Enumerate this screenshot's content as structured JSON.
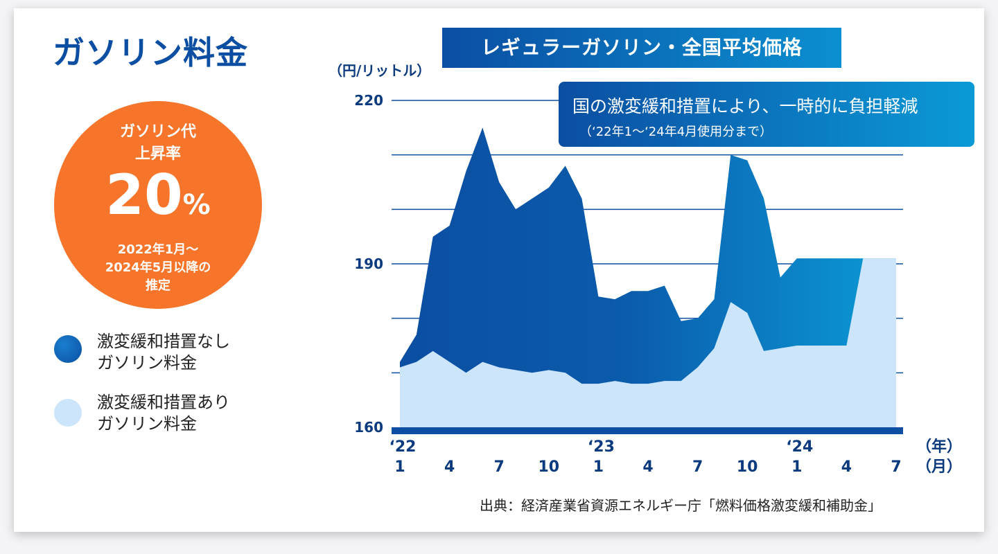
{
  "page_title": "ガソリン料金",
  "badge": {
    "line1": "ガソリン代",
    "line2": "上昇率",
    "value": "20",
    "unit": "%",
    "period1": "2022年1月〜",
    "period2": "2024年5月以降の",
    "period3": "推定"
  },
  "legend": [
    {
      "line1": "激変緩和措置なし",
      "line2": "ガソリン料金",
      "color": "#0b4ea2"
    },
    {
      "line1": "激変緩和措置あり",
      "line2": "ガソリン料金",
      "color": "#cce5fb"
    }
  ],
  "callout": {
    "line1": "国の激変緩和措置により、一時的に負担軽減",
    "line2": "（‘22年1〜‘24年4月使用分まで）"
  },
  "source": "出典：経済産業省資源エネルギー庁「燃料価格激変緩和補助金」",
  "chart_data": {
    "type": "area",
    "title": "レギュラーガソリン・全国平均価格",
    "ylabel": "（円/リットル）",
    "xlabel_year": "（年）",
    "xlabel_month": "（月）",
    "ylim": [
      160,
      220
    ],
    "y_ticks": [
      160,
      190,
      220
    ],
    "y_gridlines": [
      170,
      180,
      190,
      200,
      210,
      220
    ],
    "x_month_index": [
      0,
      1,
      2,
      3,
      4,
      5,
      6,
      7,
      8,
      9,
      10,
      11,
      12,
      13,
      14,
      15,
      16,
      17,
      18,
      19,
      20,
      21,
      22,
      23,
      24,
      25,
      26,
      27,
      28,
      29,
      30
    ],
    "x_tick_labels": [
      {
        "index": 0,
        "month": "1",
        "year": "‘22"
      },
      {
        "index": 3,
        "month": "4"
      },
      {
        "index": 6,
        "month": "7"
      },
      {
        "index": 9,
        "month": "10"
      },
      {
        "index": 12,
        "month": "1",
        "year": "‘23"
      },
      {
        "index": 15,
        "month": "4"
      },
      {
        "index": 18,
        "month": "7"
      },
      {
        "index": 21,
        "month": "10"
      },
      {
        "index": 24,
        "month": "1",
        "year": "‘24"
      },
      {
        "index": 27,
        "month": "4"
      },
      {
        "index": 30,
        "month": "7"
      }
    ],
    "series": [
      {
        "name": "激変緩和措置なし ガソリン料金",
        "color": "#0b4ea2",
        "values": [
          172,
          177,
          195,
          197,
          207,
          215,
          205,
          200,
          202,
          204,
          208,
          202,
          184,
          183.5,
          185,
          185,
          186,
          179.5,
          180,
          183.5,
          210,
          209,
          202,
          187.5,
          191,
          191,
          191,
          191,
          191,
          191,
          191
        ]
      },
      {
        "name": "激変緩和措置あり ガソリン料金",
        "color": "#cce5fb",
        "values": [
          171,
          172,
          174,
          172,
          170,
          172,
          171,
          170.5,
          170,
          170.5,
          170,
          168,
          168,
          168.5,
          168,
          168,
          168.5,
          168.5,
          171,
          174.5,
          183,
          181,
          174,
          174.5,
          175,
          175,
          175,
          175,
          191,
          191,
          191
        ]
      }
    ]
  }
}
